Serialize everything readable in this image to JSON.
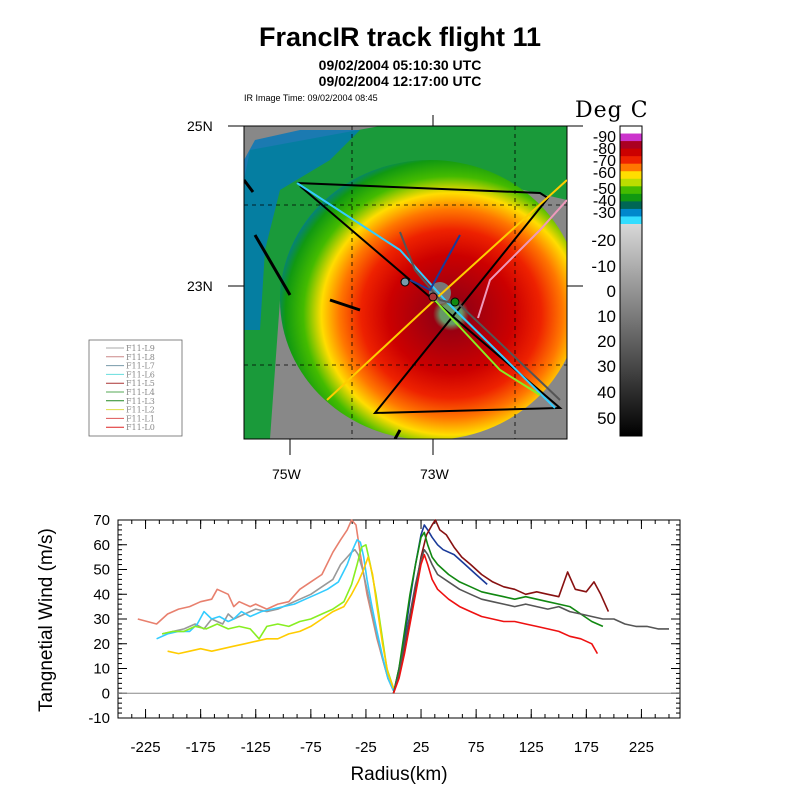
{
  "header": {
    "title": "FrancIR track flight 11",
    "subtitle1": "09/02/2004 05:10:30 UTC",
    "subtitle2": "09/02/2004 12:17:00 UTC",
    "ir_time": "IR Image Time: 09/02/2004 08:45"
  },
  "map": {
    "lat_labels": [
      "25N",
      "23N"
    ],
    "lon_labels": [
      "75W",
      "73W"
    ],
    "center": "23N 73W",
    "legend": [
      {
        "label": "F11-L9",
        "color": "#aaaaaa"
      },
      {
        "label": "F11-L8",
        "color": "#cc8888"
      },
      {
        "label": "F11-L7",
        "color": "#7799aa"
      },
      {
        "label": "F11-L6",
        "color": "#66dddd"
      },
      {
        "label": "F11-L5",
        "color": "#aa3333"
      },
      {
        "label": "F11-L4",
        "color": "#55aa55"
      },
      {
        "label": "F11-L3",
        "color": "#228822"
      },
      {
        "label": "F11-L2",
        "color": "#dddd44"
      },
      {
        "label": "F11-L1",
        "color": "#dd5555"
      },
      {
        "label": "F11-L0",
        "color": "#dd2222"
      }
    ]
  },
  "colorbar": {
    "title": "Deg C",
    "labels": [
      "-90",
      "-80",
      "-70",
      "-60",
      "-50",
      "-40",
      "-30",
      "-20",
      "-10",
      "0",
      "10",
      "20",
      "30",
      "40",
      "50"
    ],
    "colors": {
      "m90": "#ffffff",
      "m85": "#cc33cc",
      "m80": "#aa0022",
      "m75": "#cc0000",
      "m70": "#ee2200",
      "m65": "#ff7700",
      "m60": "#ffdd00",
      "m55": "#bbdd00",
      "m50": "#44bb00",
      "m45": "#119911",
      "m40": "#006655",
      "m35": "#0088cc",
      "m30": "#33ddff",
      "warm_top": "#d0d0d0",
      "warm_bottom": "#000000"
    }
  },
  "chart_data": {
    "type": "line",
    "xlabel": "Radius(km)",
    "ylabel": "Tangnetial Wind (m/s)",
    "xlim": [
      -250,
      260
    ],
    "ylim": [
      -10,
      70
    ],
    "xticks": [
      -225,
      -175,
      -125,
      -75,
      -25,
      25,
      75,
      125,
      175,
      225
    ],
    "yticks": [
      -10,
      0,
      10,
      20,
      30,
      40,
      50,
      60,
      70
    ],
    "zero_line": 0,
    "series": [
      {
        "color": "#e8806e",
        "x": [
          -232,
          -215,
          -205,
          -195,
          -185,
          -175,
          -165,
          -160,
          -150,
          -145,
          -140,
          -130,
          -125,
          -115,
          -105,
          -95,
          -85,
          -75,
          -65,
          -55,
          -48,
          -42,
          -38,
          -34,
          -30,
          -27,
          -24,
          -20,
          -15,
          -10,
          -5,
          0
        ],
        "y": [
          30,
          28,
          32,
          34,
          35,
          37,
          38,
          42,
          40,
          35,
          37,
          35,
          36,
          34,
          36,
          37,
          42,
          45,
          48,
          57,
          62,
          66,
          70,
          68,
          56,
          48,
          40,
          32,
          22,
          14,
          6,
          1
        ]
      },
      {
        "color": "#999999",
        "x": [
          -210,
          -200,
          -190,
          -180,
          -172,
          -165,
          -155,
          -150,
          -145,
          -135,
          -125,
          -115,
          -105,
          -95,
          -85,
          -75,
          -65,
          -55,
          -48,
          -42,
          -38,
          -35,
          -32,
          -28,
          -24,
          -20,
          -15,
          -10,
          -5,
          0
        ],
        "y": [
          24,
          25,
          26,
          28,
          26,
          30,
          28,
          32,
          30,
          32,
          34,
          33,
          34,
          36,
          38,
          40,
          43,
          46,
          52,
          55,
          57,
          58,
          56,
          50,
          42,
          33,
          23,
          14,
          6,
          1
        ]
      },
      {
        "color": "#33ccff",
        "x": [
          -215,
          -205,
          -195,
          -185,
          -178,
          -172,
          -165,
          -158,
          -150,
          -145,
          -138,
          -130,
          -120,
          -110,
          -100,
          -90,
          -80,
          -70,
          -60,
          -50,
          -42,
          -37,
          -33,
          -30,
          -27,
          -24,
          -20,
          -15,
          -10,
          -5,
          0
        ],
        "y": [
          22,
          24,
          25,
          25,
          28,
          33,
          30,
          31,
          29,
          30,
          33,
          31,
          33,
          34,
          35,
          36,
          38,
          40,
          42,
          45,
          52,
          58,
          62,
          61,
          55,
          46,
          36,
          25,
          15,
          6,
          1
        ]
      },
      {
        "color": "#88ee22",
        "x": [
          -210,
          -200,
          -190,
          -180,
          -170,
          -160,
          -150,
          -140,
          -130,
          -122,
          -115,
          -105,
          -95,
          -85,
          -75,
          -65,
          -55,
          -45,
          -38,
          -33,
          -29,
          -25,
          -21,
          -16,
          -11,
          -6,
          0
        ],
        "y": [
          24,
          25,
          25,
          27,
          26,
          28,
          26,
          27,
          26,
          22,
          27,
          28,
          27,
          29,
          30,
          32,
          34,
          37,
          44,
          52,
          59,
          60,
          52,
          40,
          25,
          10,
          2
        ]
      },
      {
        "color": "#ffcc00",
        "x": [
          -205,
          -195,
          -185,
          -175,
          -165,
          -155,
          -145,
          -135,
          -125,
          -115,
          -105,
          -95,
          -85,
          -75,
          -65,
          -55,
          -45,
          -38,
          -32,
          -27,
          -23,
          -19,
          -15,
          -10,
          -5,
          0
        ],
        "y": [
          17,
          16,
          17,
          18,
          17,
          18,
          19,
          20,
          21,
          22,
          22,
          24,
          25,
          27,
          30,
          33,
          35,
          40,
          45,
          50,
          55,
          48,
          35,
          20,
          8,
          2
        ]
      },
      {
        "color": "#1a3a99",
        "x": [
          0,
          5,
          10,
          15,
          20,
          25,
          28,
          31,
          35,
          40,
          45,
          55,
          65,
          75,
          85
        ],
        "y": [
          0,
          10,
          22,
          38,
          52,
          64,
          68,
          66,
          63,
          60,
          58,
          56,
          52,
          48,
          44
        ]
      },
      {
        "color": "#881111",
        "x": [
          0,
          5,
          10,
          15,
          20,
          25,
          30,
          35,
          38,
          42,
          48,
          55,
          62,
          70,
          80,
          90,
          100,
          110,
          120,
          130,
          140,
          150,
          158,
          165,
          175,
          182,
          188,
          195
        ],
        "y": [
          0,
          8,
          18,
          30,
          42,
          55,
          64,
          68,
          70,
          66,
          64,
          59,
          55,
          52,
          48,
          45,
          43,
          42,
          40,
          41,
          40,
          39,
          49,
          42,
          41,
          45,
          40,
          33
        ]
      },
      {
        "color": "#118811",
        "x": [
          0,
          5,
          10,
          15,
          20,
          25,
          28,
          31,
          35,
          40,
          50,
          60,
          70,
          80,
          90,
          100,
          110,
          120,
          130,
          140,
          150,
          160,
          170,
          180,
          190
        ],
        "y": [
          0,
          10,
          25,
          40,
          52,
          63,
          65,
          60,
          55,
          52,
          48,
          45,
          43,
          41,
          40,
          39,
          38,
          39,
          38,
          37,
          36,
          35,
          32,
          29,
          27
        ]
      },
      {
        "color": "#555555",
        "x": [
          0,
          5,
          10,
          15,
          20,
          25,
          28,
          31,
          35,
          40,
          50,
          60,
          70,
          80,
          90,
          100,
          110,
          120,
          130,
          140,
          150,
          160,
          170,
          180,
          190,
          200,
          210,
          220,
          230,
          240,
          250
        ],
        "y": [
          0,
          8,
          20,
          32,
          44,
          54,
          58,
          56,
          52,
          48,
          45,
          42,
          40,
          38,
          37,
          36,
          35,
          36,
          35,
          34,
          35,
          33,
          32,
          31,
          30,
          30,
          28,
          27,
          27,
          26,
          26
        ]
      },
      {
        "color": "#ee1111",
        "x": [
          0,
          5,
          10,
          15,
          20,
          25,
          28,
          31,
          35,
          40,
          50,
          60,
          70,
          80,
          90,
          100,
          110,
          120,
          130,
          140,
          150,
          160,
          170,
          180,
          185
        ],
        "y": [
          0,
          6,
          16,
          28,
          40,
          52,
          56,
          52,
          46,
          42,
          38,
          35,
          33,
          31,
          30,
          29,
          29,
          28,
          27,
          26,
          25,
          23,
          22,
          20,
          16
        ]
      }
    ]
  }
}
